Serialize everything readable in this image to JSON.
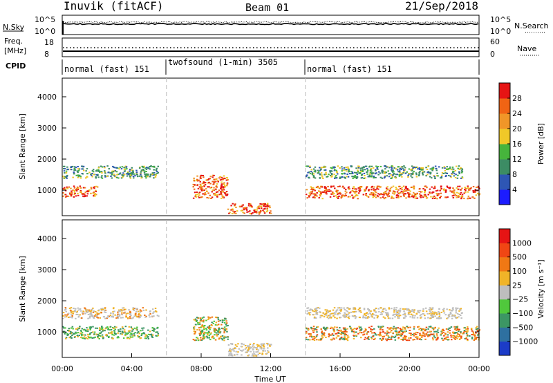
{
  "header": {
    "station": "Inuvik (fitACF)",
    "beam": "Beam 01",
    "date": "21/Sep/2018"
  },
  "strips": {
    "nsky_label": "N.Sky",
    "nsky_ticks": [
      "10^5",
      "10^0"
    ],
    "nsearch_label": "N.Search",
    "nsearch_ticks": [
      "10^5",
      "10^0"
    ],
    "freq_label_1": "Freq.",
    "freq_label_2": "[MHz]",
    "freq_ticks": [
      "18",
      "8"
    ],
    "nave_label": "Nave",
    "nave_ticks": [
      "60",
      "0"
    ],
    "cpid_label": "CPID",
    "cpid_segments": [
      {
        "label": "normal (fast) 151",
        "start": 0,
        "end": 6
      },
      {
        "label": "twofsound (1-min) 3505",
        "start": 6,
        "end": 14
      },
      {
        "label": "normal (fast) 151",
        "start": 14,
        "end": 24
      }
    ]
  },
  "chart_data": [
    {
      "type": "heatmap",
      "title": "",
      "xlabel": "",
      "ylabel": "Slant Range [km]",
      "xlim": [
        0,
        24
      ],
      "ylim": [
        180,
        4600
      ],
      "yticks": [
        1000,
        2000,
        3000,
        4000
      ],
      "colorbar": {
        "label": "Power [dB]",
        "ticks": [
          "4",
          "8",
          "12",
          "16",
          "20",
          "24",
          "28"
        ],
        "colors": [
          "#1c1cff",
          "#2e56b4",
          "#3c8c64",
          "#46b43c",
          "#f0c828",
          "#f09628",
          "#f06414",
          "#e61414"
        ]
      },
      "bands": [
        {
          "t0": 0.0,
          "t1": 2.0,
          "r0": 800,
          "r1": 1150,
          "dominant": "red-orange"
        },
        {
          "t0": 0.0,
          "t1": 5.5,
          "r0": 1400,
          "r1": 1800,
          "dominant": "green-blue"
        },
        {
          "t0": 7.5,
          "t1": 9.5,
          "r0": 750,
          "r1": 1500,
          "dominant": "red-orange"
        },
        {
          "t0": 9.5,
          "t1": 12.0,
          "r0": 250,
          "r1": 600,
          "dominant": "red-orange"
        },
        {
          "t0": 14.0,
          "t1": 24.0,
          "r0": 750,
          "r1": 1150,
          "dominant": "red-orange"
        },
        {
          "t0": 14.0,
          "t1": 23.0,
          "r0": 1400,
          "r1": 1800,
          "dominant": "green-blue"
        }
      ]
    },
    {
      "type": "heatmap",
      "title": "",
      "xlabel": "Time UT",
      "ylabel": "Slant Range [km]",
      "xlim": [
        0,
        24
      ],
      "ylim": [
        180,
        4600
      ],
      "yticks": [
        1000,
        2000,
        3000,
        4000
      ],
      "xticks": [
        "00:00",
        "04:00",
        "08:00",
        "12:00",
        "16:00",
        "20:00",
        "00:00"
      ],
      "colorbar": {
        "label": "Velocity [m s⁻¹]",
        "ticks": [
          "1000",
          "500",
          "100",
          "25",
          "−25",
          "−100",
          "−500",
          "−1000"
        ],
        "colors": [
          "#1c3cc8",
          "#2e70a0",
          "#3c9664",
          "#50c83c",
          "#bebebe",
          "#f0b428",
          "#f07814",
          "#f04614",
          "#e61414"
        ]
      },
      "bands": [
        {
          "t0": 0.0,
          "t1": 5.5,
          "r0": 800,
          "r1": 1200,
          "dominant": "green"
        },
        {
          "t0": 0.0,
          "t1": 5.5,
          "r0": 1450,
          "r1": 1800,
          "dominant": "grey-orange"
        },
        {
          "t0": 7.5,
          "t1": 9.5,
          "r0": 750,
          "r1": 1500,
          "dominant": "green-orange"
        },
        {
          "t0": 9.5,
          "t1": 12.0,
          "r0": 250,
          "r1": 650,
          "dominant": "grey"
        },
        {
          "t0": 14.0,
          "t1": 24.0,
          "r0": 750,
          "r1": 1200,
          "dominant": "orange"
        },
        {
          "t0": 14.0,
          "t1": 23.0,
          "r0": 1450,
          "r1": 1800,
          "dominant": "grey"
        }
      ]
    }
  ]
}
